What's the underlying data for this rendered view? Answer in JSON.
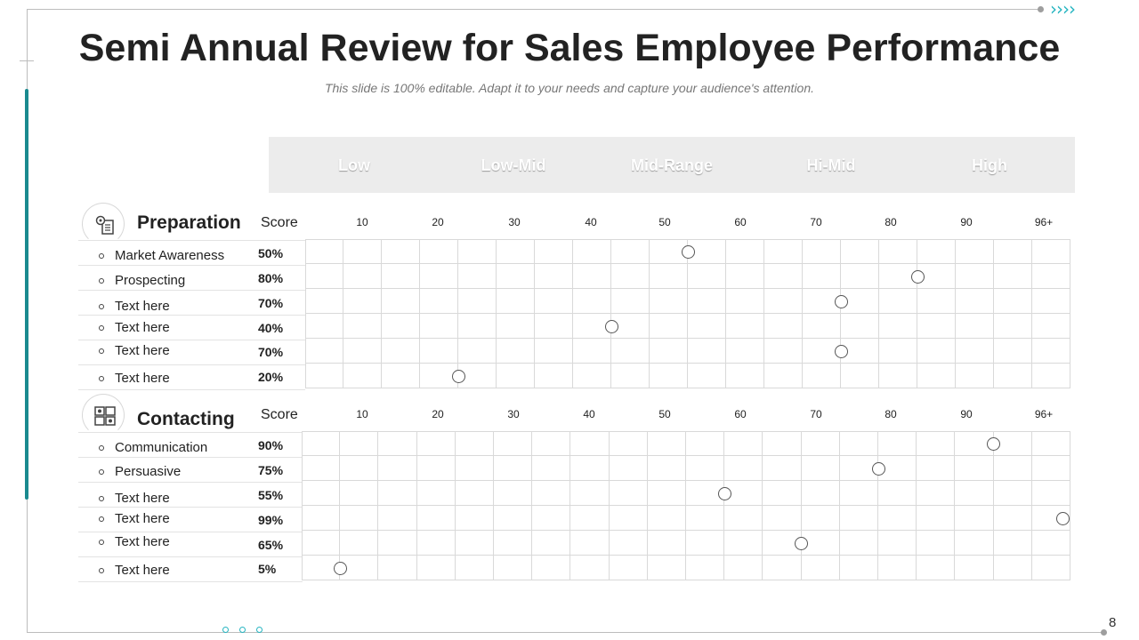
{
  "title": "Semi Annual Review for Sales Employee Performance",
  "subtitle": "This slide is 100% editable. Adapt it to your needs and capture your audience's attention.",
  "page_number": "8",
  "legend": [
    {
      "label": "Low",
      "color": "#1eb1bf"
    },
    {
      "label": "Low-Mid",
      "color": "#3f4e66"
    },
    {
      "label": "Mid-Range",
      "color": "#1eb1bf"
    },
    {
      "label": "Hi-Mid",
      "color": "#3f4e66"
    },
    {
      "label": "High",
      "color": "#1eb1bf"
    }
  ],
  "score_header": "Score",
  "ticks": [
    "10",
    "20",
    "30",
    "40",
    "50",
    "60",
    "70",
    "80",
    "90",
    "96+"
  ],
  "sections": [
    {
      "title": "Preparation",
      "icon": "gear-clipboard-icon",
      "rows": [
        {
          "label": "Market Awareness",
          "pct": "50%",
          "value": 50
        },
        {
          "label": "Prospecting",
          "pct": "80%",
          "value": 80
        },
        {
          "label": "Text here",
          "pct": "70%",
          "value": 70
        },
        {
          "label": "Text here",
          "pct": "40%",
          "value": 40
        },
        {
          "label": "Text here",
          "pct": "70%",
          "value": 70
        },
        {
          "label": "Text here",
          "pct": "20%",
          "value": 20
        }
      ]
    },
    {
      "title": "Contacting",
      "icon": "contact-devices-icon",
      "rows": [
        {
          "label": "Communication",
          "pct": "90%",
          "value": 90
        },
        {
          "label": "Persuasive",
          "pct": "75%",
          "value": 75
        },
        {
          "label": "Text here",
          "pct": "55%",
          "value": 55
        },
        {
          "label": "Text here",
          "pct": "99%",
          "value": 99
        },
        {
          "label": "Text here",
          "pct": "65%",
          "value": 65
        },
        {
          "label": "Text here",
          "pct": "5%",
          "value": 5
        }
      ]
    }
  ]
}
